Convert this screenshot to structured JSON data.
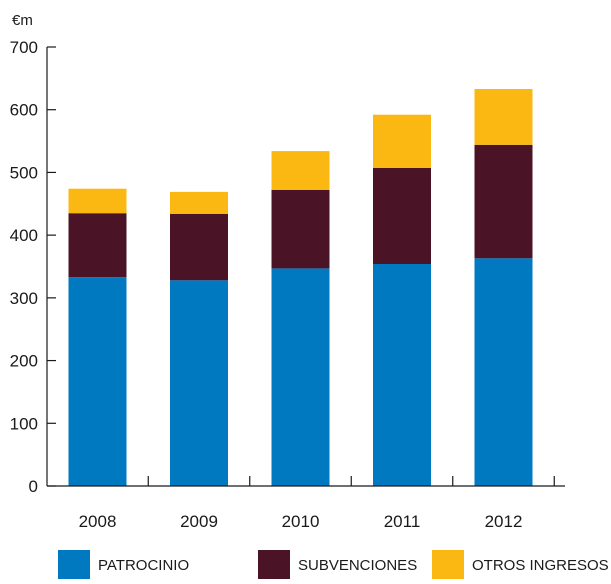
{
  "chart_data": {
    "type": "bar",
    "stacked": true,
    "unit_label": "€m",
    "categories": [
      "2008",
      "2009",
      "2010",
      "2011",
      "2012"
    ],
    "series": [
      {
        "name": "PATROCINIO",
        "color": "#0079c1",
        "values": [
          333,
          328,
          347,
          354,
          363
        ]
      },
      {
        "name": "SUBVENCIONES",
        "color": "#4a1426",
        "values": [
          102,
          106,
          125,
          153,
          181
        ]
      },
      {
        "name": "OTROS INGRESOS",
        "color": "#fbb813",
        "values": [
          39,
          35,
          62,
          85,
          89
        ]
      }
    ],
    "yticks": [
      "0",
      "100",
      "200",
      "300",
      "400",
      "500",
      "600",
      "700"
    ],
    "ylim": [
      0,
      700
    ],
    "grid": false,
    "legend_position": "bottom"
  }
}
